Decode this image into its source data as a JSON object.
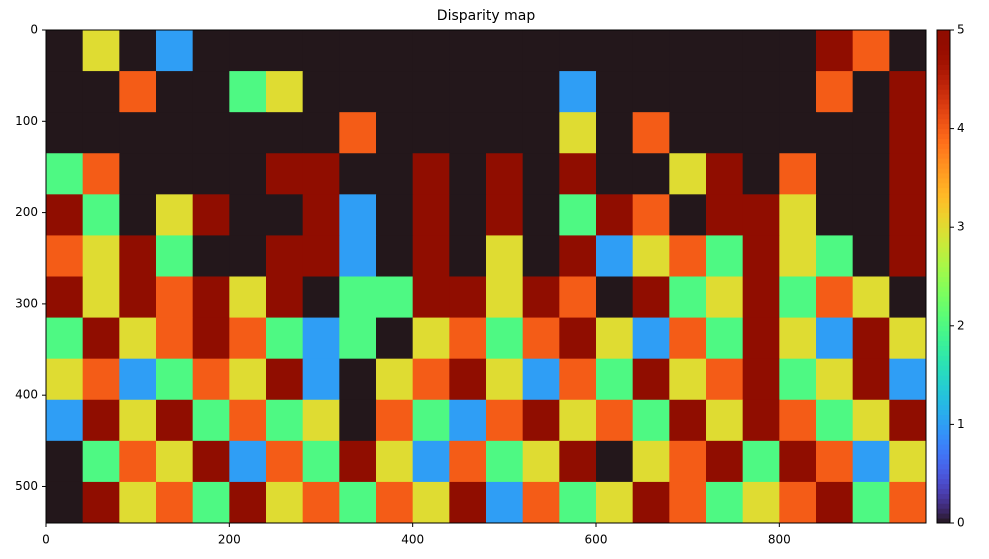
{
  "chart_data": {
    "type": "image",
    "title": "Disparity map",
    "colormap": "turbo",
    "xlim": [
      0,
      960
    ],
    "ylim": [
      540,
      0
    ],
    "xticks": [
      0,
      200,
      400,
      600,
      800
    ],
    "yticks": [
      0,
      100,
      200,
      300,
      400,
      500
    ],
    "clim": [
      0,
      5
    ],
    "cticks": [
      0,
      1,
      2,
      3,
      4,
      5
    ],
    "z": [
      [
        0,
        3,
        0,
        1,
        0,
        0,
        0,
        0,
        0,
        0,
        0,
        0,
        0,
        0,
        0,
        0,
        0,
        0,
        0,
        0,
        0,
        5,
        4,
        0
      ],
      [
        0,
        0,
        4,
        0,
        0,
        2,
        3,
        0,
        0,
        0,
        0,
        0,
        0,
        0,
        1,
        0,
        0,
        0,
        0,
        0,
        0,
        4,
        0,
        5
      ],
      [
        0,
        0,
        0,
        0,
        0,
        0,
        0,
        0,
        4,
        0,
        0,
        0,
        0,
        0,
        3,
        0,
        4,
        0,
        0,
        0,
        0,
        0,
        0,
        5
      ],
      [
        2,
        4,
        0,
        0,
        0,
        0,
        5,
        5,
        0,
        0,
        5,
        0,
        5,
        0,
        5,
        0,
        0,
        3,
        5,
        0,
        4,
        0,
        0,
        5
      ],
      [
        5,
        2,
        0,
        3,
        5,
        0,
        0,
        5,
        1,
        0,
        5,
        0,
        5,
        0,
        2,
        5,
        4,
        0,
        5,
        5,
        3,
        0,
        0,
        5
      ],
      [
        4,
        3,
        5,
        2,
        0,
        0,
        5,
        5,
        1,
        0,
        5,
        0,
        3,
        0,
        5,
        1,
        3,
        4,
        2,
        5,
        3,
        2,
        0,
        5
      ],
      [
        5,
        3,
        5,
        4,
        5,
        3,
        5,
        0,
        2,
        2,
        5,
        5,
        3,
        5,
        4,
        0,
        5,
        2,
        3,
        5,
        2,
        4,
        3,
        0
      ],
      [
        2,
        5,
        3,
        4,
        5,
        4,
        2,
        1,
        2,
        0,
        3,
        4,
        2,
        4,
        5,
        3,
        1,
        4,
        2,
        5,
        3,
        1,
        5,
        3
      ],
      [
        3,
        4,
        1,
        2,
        4,
        3,
        5,
        1,
        0,
        3,
        4,
        5,
        3,
        1,
        4,
        2,
        5,
        3,
        4,
        5,
        2,
        3,
        5,
        1
      ],
      [
        1,
        5,
        3,
        5,
        2,
        4,
        2,
        3,
        0,
        4,
        2,
        1,
        4,
        5,
        3,
        4,
        2,
        5,
        3,
        5,
        4,
        2,
        3,
        5
      ],
      [
        0,
        2,
        4,
        3,
        5,
        1,
        4,
        2,
        5,
        3,
        1,
        4,
        2,
        3,
        5,
        0,
        3,
        4,
        5,
        2,
        5,
        4,
        1,
        3
      ],
      [
        0,
        5,
        3,
        4,
        2,
        5,
        3,
        4,
        2,
        4,
        3,
        5,
        1,
        4,
        2,
        3,
        5,
        4,
        2,
        3,
        4,
        5,
        2,
        4
      ]
    ]
  }
}
